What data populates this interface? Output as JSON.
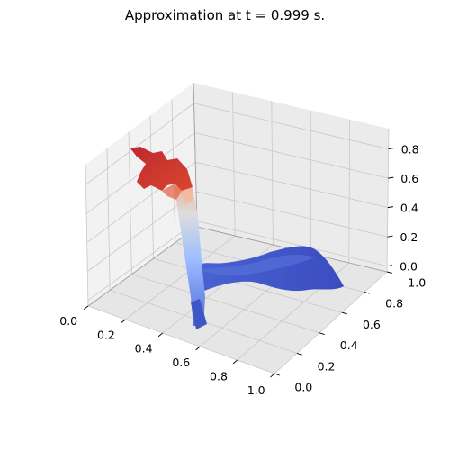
{
  "chart_data": {
    "type": "surface3d",
    "title": "Approximation at t = 0.999 s.",
    "colormap": "coolwarm",
    "colormap_stops": [
      "#3b4cc0",
      "#7b9ff9",
      "#c0d4f5",
      "#f2cbb7",
      "#ee8468",
      "#b40426"
    ],
    "x_ticks": [
      "0.0",
      "0.2",
      "0.4",
      "0.6",
      "0.8",
      "1.0"
    ],
    "y_ticks": [
      "0.0",
      "0.2",
      "0.4",
      "0.6",
      "0.8",
      "1.0"
    ],
    "z_ticks": [
      "0.0",
      "0.2",
      "0.4",
      "0.6",
      "0.8"
    ],
    "xlim": [
      0,
      1
    ],
    "ylim": [
      0,
      1
    ],
    "zlim": [
      0,
      0.9
    ],
    "pane_color": "#f2f2f2",
    "grid": true,
    "surface": {
      "description_points": [
        {
          "x": 0.02,
          "y": 0.95,
          "z": 0.8
        },
        {
          "x": 0.2,
          "y": 0.95,
          "z": 0.72
        },
        {
          "x": 0.25,
          "y": 0.75,
          "z": 0.55
        },
        {
          "x": 0.36,
          "y": 0.55,
          "z": 0.1
        },
        {
          "x": 0.4,
          "y": 0.4,
          "z": 0.02
        },
        {
          "x": 0.55,
          "y": 0.5,
          "z": 0.01
        },
        {
          "x": 0.8,
          "y": 0.75,
          "z": 0.01
        },
        {
          "x": 1.0,
          "y": 0.95,
          "z": 0.01
        }
      ]
    }
  }
}
